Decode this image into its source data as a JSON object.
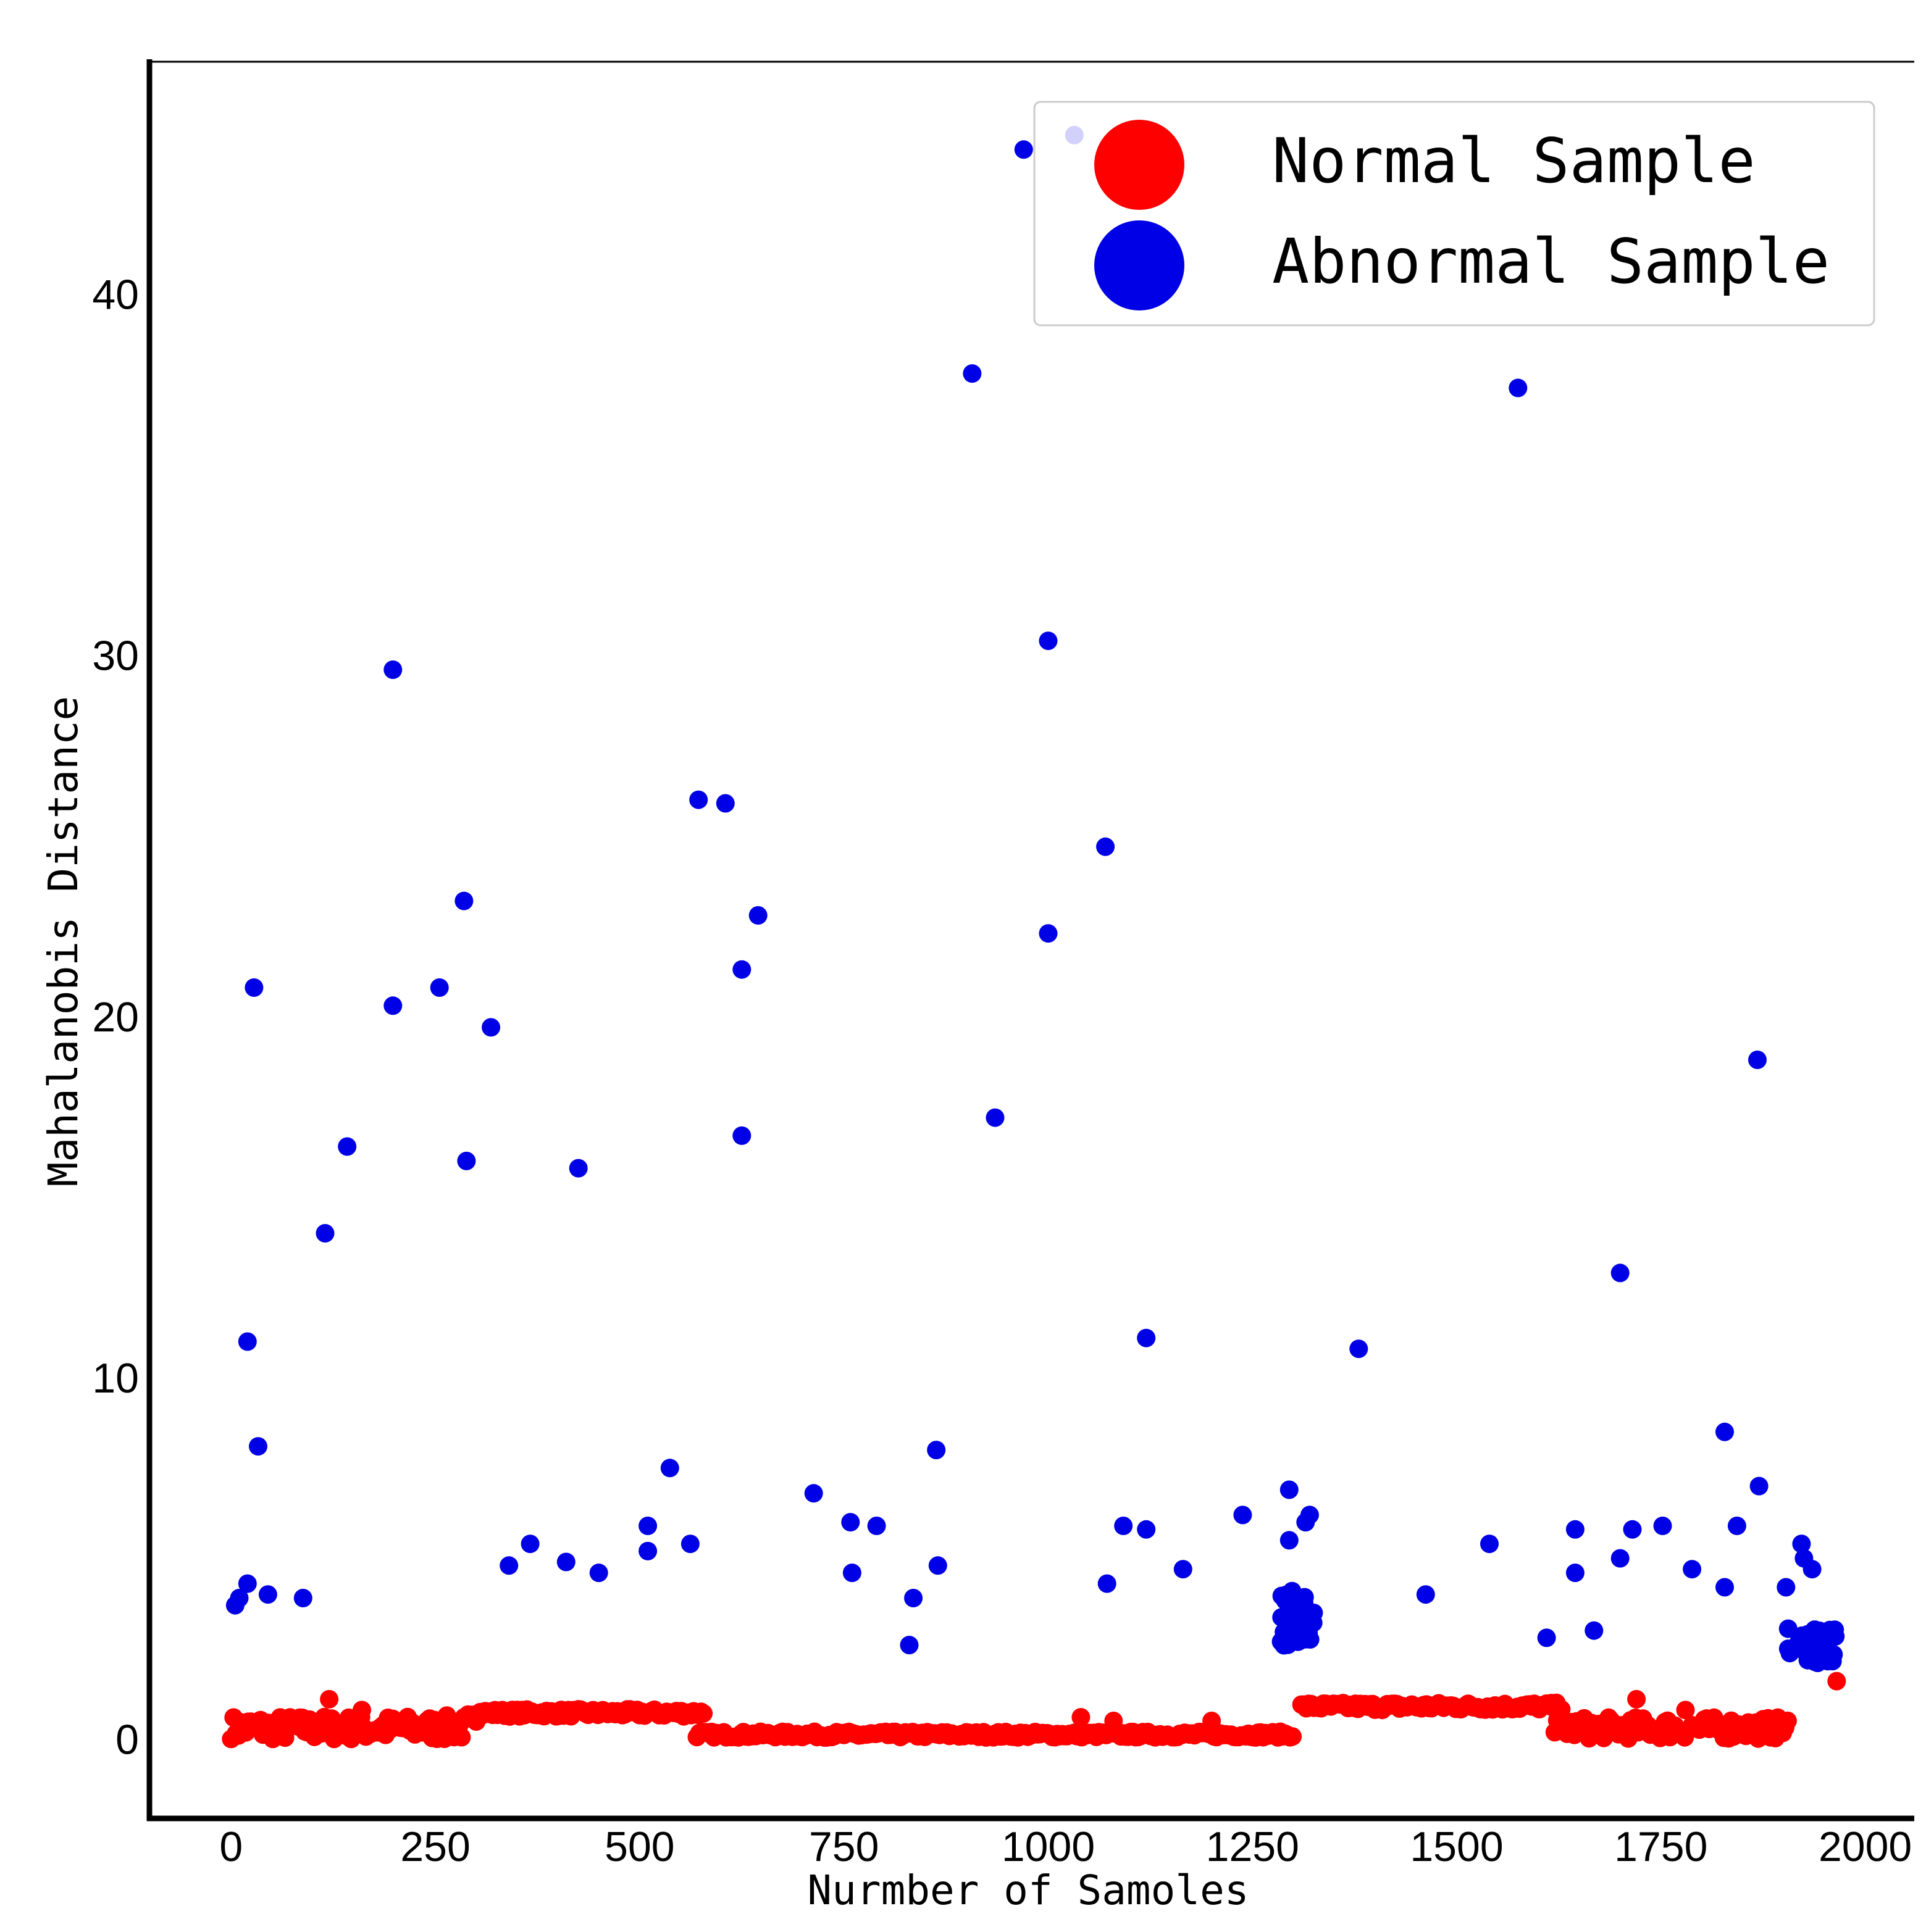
{
  "chart_data": {
    "type": "scatter",
    "title": "",
    "xlabel": "Nurmber of Samoles",
    "ylabel": "Mahalanobis Distance",
    "xlim": [
      -100,
      2060
    ],
    "ylim": [
      -2.2,
      46.5
    ],
    "xticks": [
      0,
      250,
      500,
      750,
      1000,
      1250,
      1500,
      1750,
      2000
    ],
    "yticks": [
      0,
      10,
      20,
      30,
      40
    ],
    "grid": false,
    "legend_position": "top-right",
    "series": [
      {
        "name": "Normal Sample",
        "color": "#ff0000",
        "segments": [
          {
            "x_start": 0,
            "x_end": 300,
            "base": 0.3,
            "jitter": 0.35
          },
          {
            "x_start": 290,
            "x_end": 580,
            "base": 0.72,
            "jitter": 0.1
          },
          {
            "x_start": 570,
            "x_end": 1300,
            "base": 0.12,
            "jitter": 0.08
          },
          {
            "x_start": 1310,
            "x_end": 1630,
            "base": 0.9,
            "jitter": 0.1
          },
          {
            "x_start": 1620,
            "x_end": 1905,
            "base": 0.3,
            "jitter": 0.3
          }
        ],
        "points": [
          [
            1965,
            1.6
          ],
          [
            120,
            1.1
          ],
          [
            160,
            0.8
          ],
          [
            1720,
            1.1
          ],
          [
            1780,
            0.8
          ],
          [
            1040,
            0.6
          ],
          [
            1080,
            0.5
          ],
          [
            1200,
            0.5
          ]
        ]
      },
      {
        "name": "Abnormal Sample",
        "color": "#0000e6",
        "points": [
          [
            5,
            3.7
          ],
          [
            10,
            3.9
          ],
          [
            20,
            4.3
          ],
          [
            20,
            11.0
          ],
          [
            28,
            20.8
          ],
          [
            33,
            8.1
          ],
          [
            45,
            4.0
          ],
          [
            88,
            3.9
          ],
          [
            115,
            14.0
          ],
          [
            142,
            16.4
          ],
          [
            198,
            29.6
          ],
          [
            198,
            20.3
          ],
          [
            255,
            20.8
          ],
          [
            285,
            23.2
          ],
          [
            288,
            16.0
          ],
          [
            318,
            19.7
          ],
          [
            340,
            4.8
          ],
          [
            366,
            5.4
          ],
          [
            410,
            4.9
          ],
          [
            425,
            15.8
          ],
          [
            450,
            4.6
          ],
          [
            510,
            5.9
          ],
          [
            510,
            5.2
          ],
          [
            537,
            7.5
          ],
          [
            562,
            5.4
          ],
          [
            572,
            26.0
          ],
          [
            605,
            25.9
          ],
          [
            625,
            21.3
          ],
          [
            625,
            16.7
          ],
          [
            645,
            22.8
          ],
          [
            713,
            6.8
          ],
          [
            758,
            6.0
          ],
          [
            760,
            4.6
          ],
          [
            790,
            5.9
          ],
          [
            830,
            2.6
          ],
          [
            835,
            3.9
          ],
          [
            863,
            8.0
          ],
          [
            865,
            4.8
          ],
          [
            907,
            37.8
          ],
          [
            935,
            17.2
          ],
          [
            970,
            44.0
          ],
          [
            1000,
            30.4
          ],
          [
            1000,
            22.3
          ],
          [
            1032,
            44.4
          ],
          [
            1070,
            24.7
          ],
          [
            1072,
            4.3
          ],
          [
            1092,
            5.9
          ],
          [
            1120,
            11.1
          ],
          [
            1120,
            5.8
          ],
          [
            1165,
            4.7
          ],
          [
            1238,
            6.2
          ],
          [
            1295,
            6.9
          ],
          [
            1295,
            5.5
          ],
          [
            1315,
            6.0
          ],
          [
            1320,
            6.2
          ],
          [
            1380,
            10.8
          ],
          [
            1462,
            4.0
          ],
          [
            1540,
            5.4
          ],
          [
            1575,
            37.4
          ],
          [
            1610,
            2.8
          ],
          [
            1645,
            5.8
          ],
          [
            1645,
            4.6
          ],
          [
            1668,
            3.0
          ],
          [
            1700,
            12.9
          ],
          [
            1700,
            5.0
          ],
          [
            1715,
            5.8
          ],
          [
            1752,
            5.9
          ],
          [
            1788,
            4.7
          ],
          [
            1828,
            8.5
          ],
          [
            1828,
            4.2
          ],
          [
            1843,
            5.9
          ],
          [
            1868,
            18.8
          ],
          [
            1870,
            7.0
          ],
          [
            1903,
            4.2
          ],
          [
            1922,
            5.4
          ],
          [
            1925,
            5.0
          ],
          [
            1935,
            4.7
          ]
        ],
        "clusters": [
          {
            "x_start": 1285,
            "x_end": 1325,
            "y_min": 2.5,
            "y_max": 4.1,
            "count": 34
          },
          {
            "x_start": 1905,
            "x_end": 1965,
            "y_min": 2.1,
            "y_max": 3.1,
            "count": 36
          }
        ]
      }
    ]
  }
}
